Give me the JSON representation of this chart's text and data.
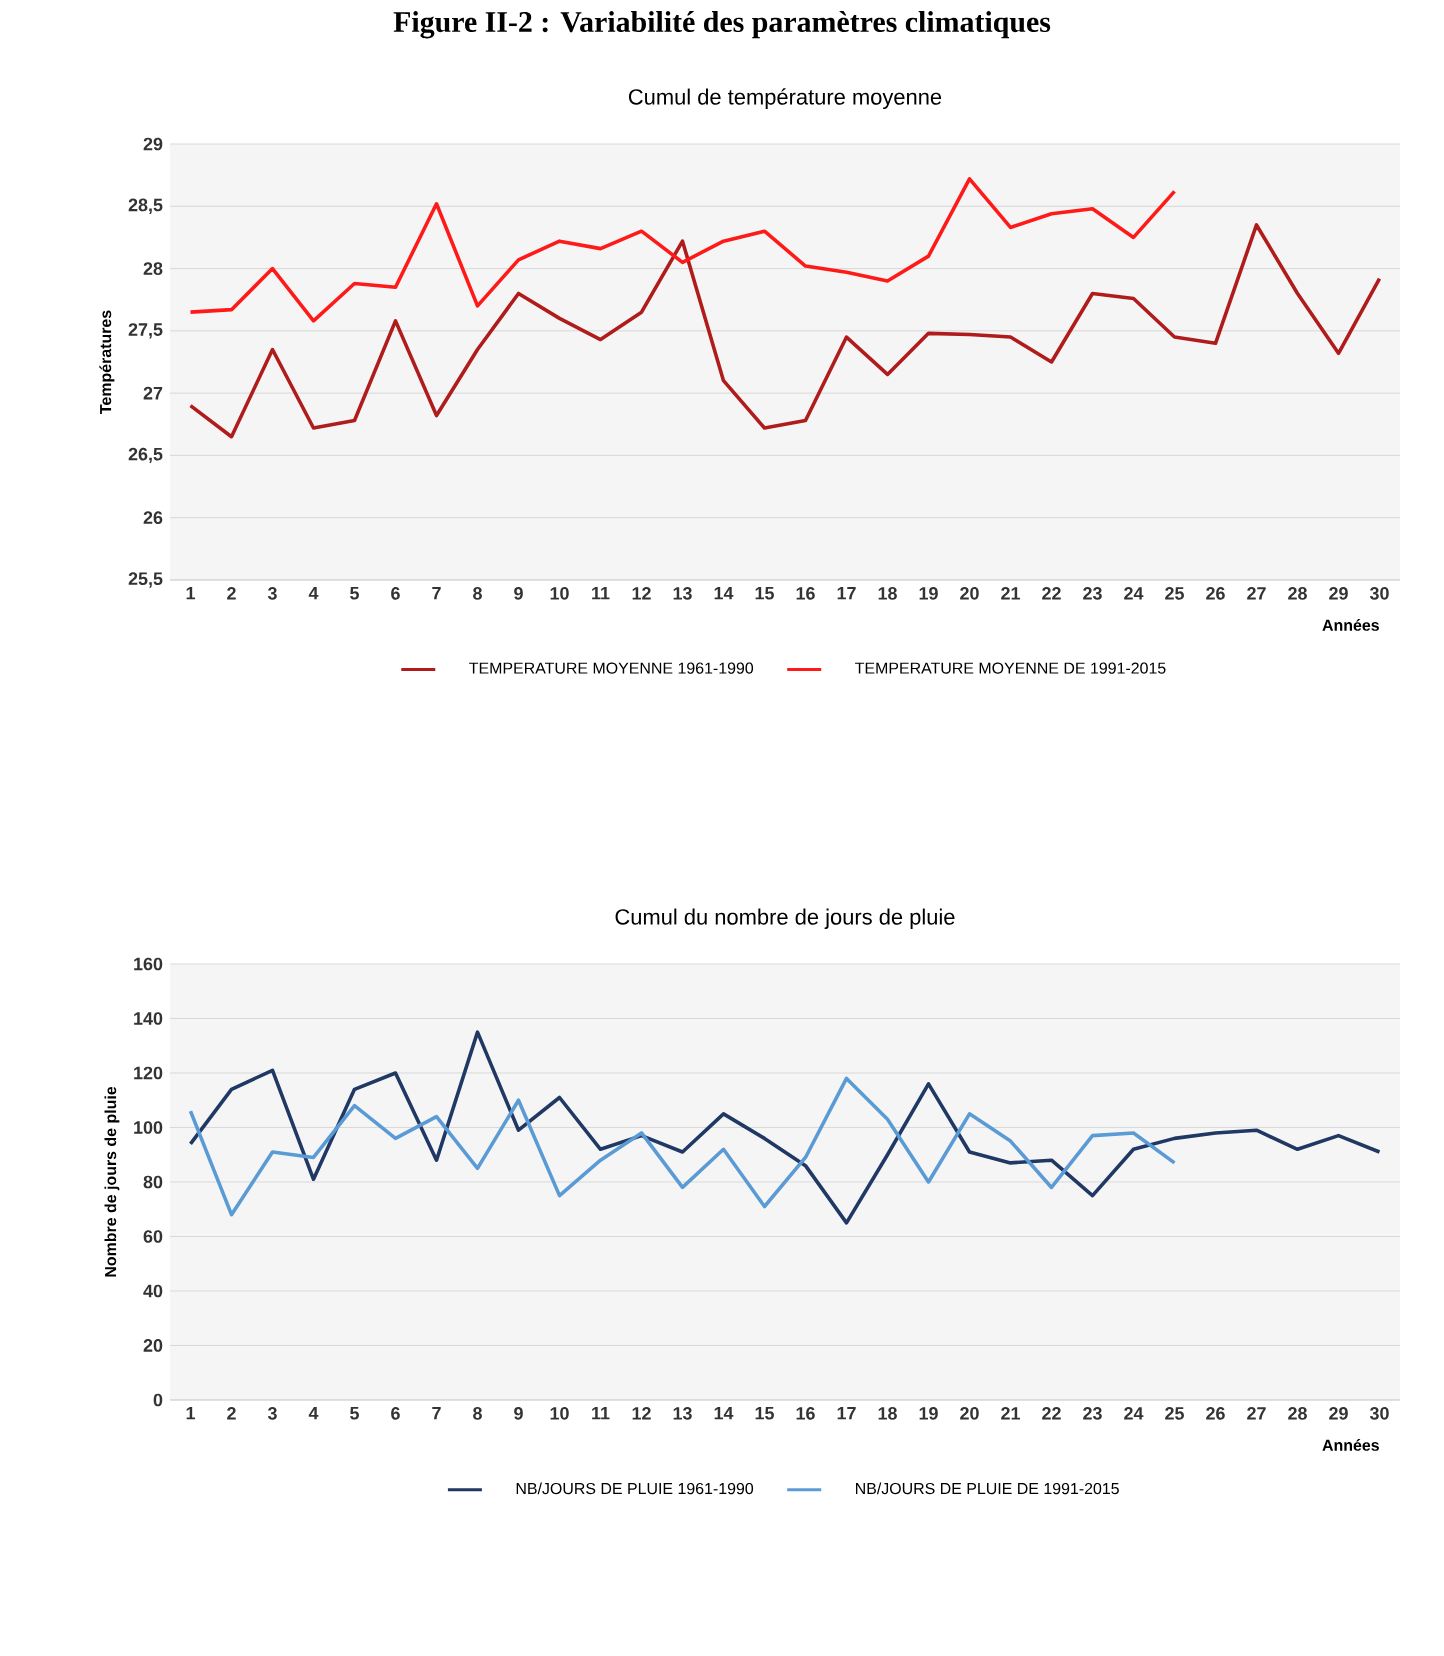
{
  "chart_data": [
    {
      "type": "line",
      "title": "Cumul de température moyenne",
      "annotations": [
        "Figure II-2 : Variabilité des paramètres climatiques"
      ],
      "xlabel": "Années",
      "ylabel": "Températures",
      "categories": [
        "1",
        "2",
        "3",
        "4",
        "5",
        "6",
        "7",
        "8",
        "9",
        "10",
        "11",
        "12",
        "13",
        "14",
        "15",
        "16",
        "17",
        "18",
        "19",
        "20",
        "21",
        "22",
        "23",
        "24",
        "25",
        "26",
        "27",
        "28",
        "29",
        "30"
      ],
      "series": [
        {
          "name": "TEMPERATURE MOYENNE 1961-1990",
          "color": "#b01c1c",
          "values": [
            26.9,
            26.65,
            27.35,
            26.72,
            26.78,
            27.58,
            26.82,
            27.35,
            27.8,
            27.6,
            27.43,
            27.65,
            28.22,
            27.1,
            26.72,
            26.78,
            27.45,
            27.15,
            27.48,
            27.47,
            27.45,
            27.25,
            27.8,
            27.76,
            27.45,
            27.4,
            28.35,
            27.8,
            27.32,
            27.92
          ]
        },
        {
          "name": "TEMPERATURE MOYENNE DE 1991-2015",
          "color": "#ff1a1a",
          "values": [
            27.65,
            27.67,
            28.0,
            27.58,
            27.88,
            27.85,
            28.52,
            27.7,
            28.07,
            28.22,
            28.16,
            28.3,
            28.05,
            28.22,
            28.3,
            28.02,
            27.97,
            27.9,
            28.1,
            28.72,
            28.33,
            28.44,
            28.48,
            28.25,
            28.62,
            null,
            null,
            null,
            null,
            null
          ]
        }
      ],
      "ylim": [
        25.5,
        29
      ],
      "yticks": [
        {
          "value": 25.5,
          "label": "25,5"
        },
        {
          "value": 26,
          "label": "26"
        },
        {
          "value": 26.5,
          "label": "26,5"
        },
        {
          "value": 27,
          "label": "27"
        },
        {
          "value": 27.5,
          "label": "27,5"
        },
        {
          "value": 28,
          "label": "28"
        },
        {
          "value": 28.5,
          "label": "28,5"
        },
        {
          "value": 29,
          "label": "29"
        }
      ],
      "grid": "y",
      "legend": "bottom",
      "marker": "none",
      "line_style": "solid"
    },
    {
      "type": "line",
      "title": "Cumul du nombre de jours de pluie",
      "xlabel": "Années",
      "ylabel": "Nombre de jours de pluie",
      "categories": [
        "1",
        "2",
        "3",
        "4",
        "5",
        "6",
        "7",
        "8",
        "9",
        "10",
        "11",
        "12",
        "13",
        "14",
        "15",
        "16",
        "17",
        "18",
        "19",
        "20",
        "21",
        "22",
        "23",
        "24",
        "25",
        "26",
        "27",
        "28",
        "29",
        "30"
      ],
      "series": [
        {
          "name": "NB/JOURS DE PLUIE 1961-1990",
          "color": "#203864",
          "values": [
            94,
            114,
            121,
            81,
            114,
            120,
            88,
            135,
            99,
            111,
            92,
            97,
            91,
            105,
            96,
            86,
            65,
            90,
            116,
            91,
            87,
            88,
            75,
            92,
            96,
            98,
            99,
            92,
            97,
            91
          ]
        },
        {
          "name": "NB/JOURS DE PLUIE DE 1991-2015",
          "color": "#5b9bd5",
          "values": [
            106,
            68,
            91,
            89,
            108,
            96,
            104,
            85,
            110,
            75,
            88,
            98,
            78,
            92,
            71,
            89,
            118,
            103,
            80,
            105,
            95,
            78,
            97,
            98,
            87,
            null,
            null,
            null,
            null,
            null
          ]
        }
      ],
      "ylim": [
        0,
        160
      ],
      "yticks": [
        0,
        20,
        40,
        60,
        80,
        100,
        120,
        140,
        160
      ],
      "grid": "y",
      "legend": "bottom",
      "marker": "none",
      "line_style": "solid"
    }
  ]
}
